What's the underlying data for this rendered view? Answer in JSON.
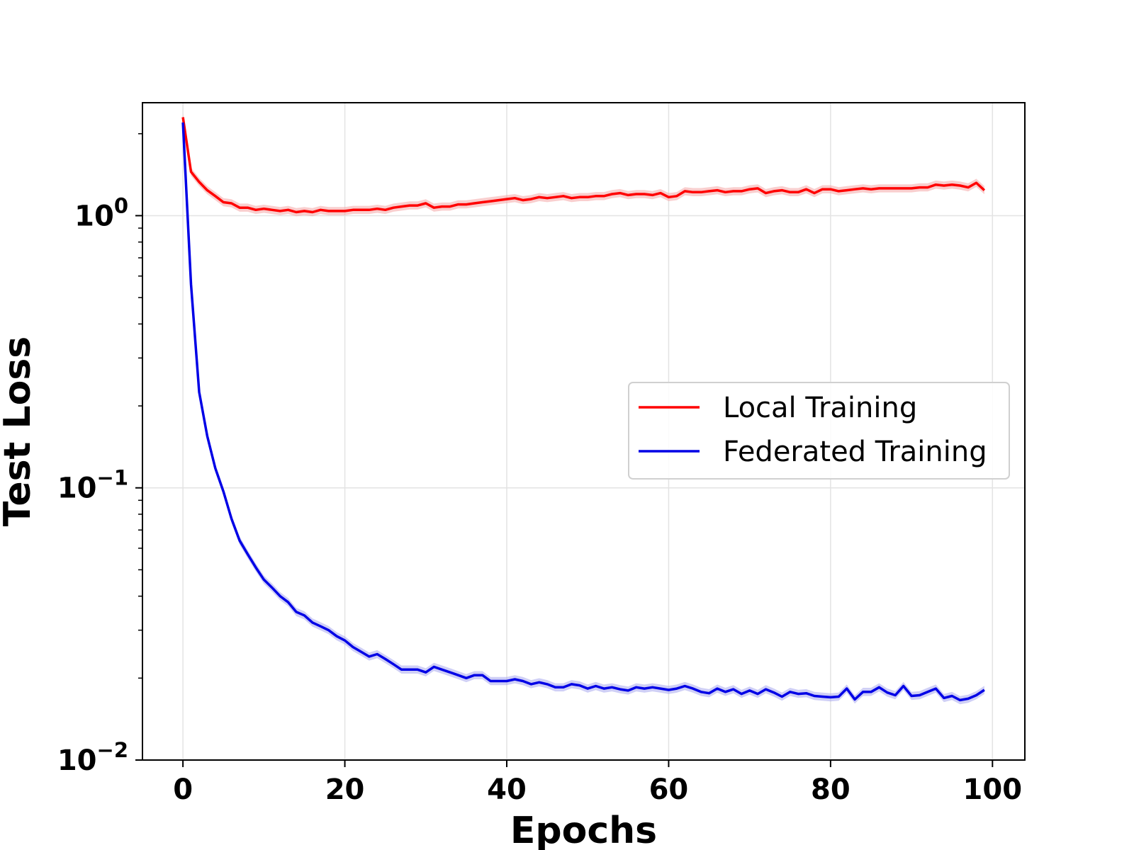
{
  "chart_data": {
    "type": "line",
    "xlabel": "Epochs",
    "ylabel": "Test Loss",
    "yscale": "log",
    "xlim": [
      -5,
      104
    ],
    "ylim": [
      0.01,
      2.6
    ],
    "xticks": [
      0,
      20,
      40,
      60,
      80,
      100
    ],
    "xtick_labels": [
      "0",
      "20",
      "40",
      "60",
      "80",
      "100"
    ],
    "yticks": [
      {
        "value": 1,
        "base": "10",
        "exp": "0"
      },
      {
        "value": 0.1,
        "base": "10",
        "exp": "−1"
      },
      {
        "value": 0.01,
        "base": "10",
        "exp": "−2"
      }
    ],
    "grid": true,
    "legend_position": "center-right",
    "series": [
      {
        "name": "Local Training",
        "color": "#ff0000",
        "band_color": "#f4a6a6",
        "x": [
          0,
          1,
          2,
          3,
          4,
          5,
          6,
          7,
          8,
          9,
          10,
          11,
          12,
          13,
          14,
          15,
          16,
          17,
          18,
          19,
          20,
          21,
          22,
          23,
          24,
          25,
          26,
          27,
          28,
          29,
          30,
          31,
          32,
          33,
          34,
          35,
          36,
          37,
          38,
          39,
          40,
          41,
          42,
          43,
          44,
          45,
          46,
          47,
          48,
          49,
          50,
          51,
          52,
          53,
          54,
          55,
          56,
          57,
          58,
          59,
          60,
          61,
          62,
          63,
          64,
          65,
          66,
          67,
          68,
          69,
          70,
          71,
          72,
          73,
          74,
          75,
          76,
          77,
          78,
          79,
          80,
          81,
          82,
          83,
          84,
          85,
          86,
          87,
          88,
          89,
          90,
          91,
          92,
          93,
          94,
          95,
          96,
          97,
          98,
          99
        ],
        "y": [
          2.3,
          1.45,
          1.33,
          1.24,
          1.18,
          1.12,
          1.11,
          1.07,
          1.07,
          1.05,
          1.06,
          1.05,
          1.04,
          1.05,
          1.03,
          1.04,
          1.03,
          1.05,
          1.04,
          1.04,
          1.04,
          1.05,
          1.05,
          1.05,
          1.06,
          1.05,
          1.07,
          1.08,
          1.09,
          1.09,
          1.11,
          1.07,
          1.08,
          1.08,
          1.1,
          1.1,
          1.11,
          1.12,
          1.13,
          1.14,
          1.15,
          1.16,
          1.14,
          1.15,
          1.17,
          1.16,
          1.17,
          1.18,
          1.16,
          1.17,
          1.17,
          1.18,
          1.18,
          1.2,
          1.21,
          1.19,
          1.2,
          1.2,
          1.19,
          1.21,
          1.17,
          1.18,
          1.23,
          1.22,
          1.22,
          1.23,
          1.24,
          1.22,
          1.23,
          1.23,
          1.25,
          1.26,
          1.21,
          1.23,
          1.24,
          1.22,
          1.22,
          1.25,
          1.21,
          1.25,
          1.25,
          1.23,
          1.24,
          1.25,
          1.26,
          1.25,
          1.26,
          1.26,
          1.26,
          1.26,
          1.26,
          1.27,
          1.27,
          1.3,
          1.29,
          1.3,
          1.29,
          1.27,
          1.32,
          1.24
        ]
      },
      {
        "name": "Federated Training",
        "color": "#0000e6",
        "band_color": "#a8a8ee",
        "x": [
          0,
          1,
          2,
          3,
          4,
          5,
          6,
          7,
          8,
          9,
          10,
          11,
          12,
          13,
          14,
          15,
          16,
          17,
          18,
          19,
          20,
          21,
          22,
          23,
          24,
          25,
          26,
          27,
          28,
          29,
          30,
          31,
          32,
          33,
          34,
          35,
          36,
          37,
          38,
          39,
          40,
          41,
          42,
          43,
          44,
          45,
          46,
          47,
          48,
          49,
          50,
          51,
          52,
          53,
          54,
          55,
          56,
          57,
          58,
          59,
          60,
          61,
          62,
          63,
          64,
          65,
          66,
          67,
          68,
          69,
          70,
          71,
          72,
          73,
          74,
          75,
          76,
          77,
          78,
          79,
          80,
          81,
          82,
          83,
          84,
          85,
          86,
          87,
          88,
          89,
          90,
          91,
          92,
          93,
          94,
          95,
          96,
          97,
          98,
          99
        ],
        "y": [
          2.2,
          0.56,
          0.225,
          0.155,
          0.118,
          0.097,
          0.077,
          0.064,
          0.057,
          0.051,
          0.046,
          0.043,
          0.04,
          0.038,
          0.035,
          0.034,
          0.032,
          0.031,
          0.03,
          0.0285,
          0.0275,
          0.026,
          0.025,
          0.024,
          0.0245,
          0.0235,
          0.0225,
          0.0215,
          0.0215,
          0.0215,
          0.021,
          0.022,
          0.0215,
          0.021,
          0.0205,
          0.02,
          0.0205,
          0.0205,
          0.0195,
          0.0195,
          0.0195,
          0.0198,
          0.0195,
          0.019,
          0.0193,
          0.019,
          0.0185,
          0.0185,
          0.019,
          0.0188,
          0.0183,
          0.0187,
          0.0183,
          0.0185,
          0.0182,
          0.018,
          0.0185,
          0.0183,
          0.0185,
          0.0183,
          0.0181,
          0.0183,
          0.0187,
          0.0183,
          0.0178,
          0.0176,
          0.0183,
          0.0178,
          0.0182,
          0.0175,
          0.018,
          0.0175,
          0.0182,
          0.0177,
          0.0171,
          0.0178,
          0.0175,
          0.0176,
          0.0172,
          0.0171,
          0.017,
          0.0171,
          0.0183,
          0.0167,
          0.0178,
          0.0178,
          0.0185,
          0.0177,
          0.0173,
          0.0187,
          0.0172,
          0.0173,
          0.0178,
          0.0183,
          0.0169,
          0.0172,
          0.0166,
          0.0168,
          0.0173,
          0.0181
        ]
      }
    ]
  }
}
